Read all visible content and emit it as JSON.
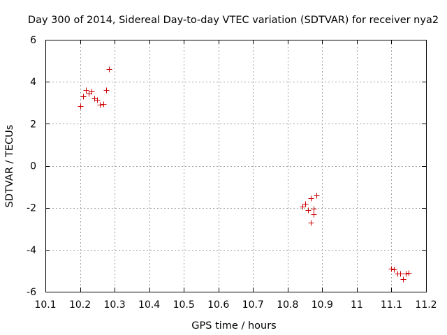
{
  "chart_data": {
    "type": "scatter",
    "title": "Day 300 of 2014, Sidereal Day-to-day VTEC variation (SDTVAR) for receiver nya2",
    "xlabel": "GPS time / hours",
    "ylabel": "SDTVAR / TECUs",
    "xlim": [
      10.1,
      11.2
    ],
    "ylim": [
      -6,
      6
    ],
    "xticks": [
      10.1,
      10.2,
      10.3,
      10.4,
      10.5,
      10.6,
      10.7,
      10.8,
      10.9,
      11,
      11.1,
      11.2
    ],
    "xtick_labels": [
      "10.1",
      "10.2",
      "10.3",
      "10.4",
      "10.5",
      "10.6",
      "10.7",
      "10.8",
      "10.9",
      "11",
      "11.1",
      "11.2"
    ],
    "yticks": [
      -6,
      -4,
      -2,
      0,
      2,
      4,
      6
    ],
    "ytick_labels": [
      "-6",
      "-4",
      "-2",
      "0",
      "2",
      "4",
      "6"
    ],
    "grid": true,
    "marker_color": "#cc0000",
    "series": [
      {
        "name": "SDTVAR",
        "marker": "+",
        "x": [
          10.2,
          10.208,
          10.217,
          10.225,
          10.233,
          10.242,
          10.25,
          10.258,
          10.267,
          10.275,
          10.283,
          10.842,
          10.85,
          10.858,
          10.867,
          10.867,
          10.875,
          10.875,
          10.883,
          11.1,
          11.108,
          11.117,
          11.125,
          11.133,
          11.142,
          11.15
        ],
        "y": [
          2.85,
          3.3,
          3.6,
          3.45,
          3.55,
          3.2,
          3.15,
          2.9,
          2.95,
          3.6,
          4.6,
          -1.95,
          -1.8,
          -2.1,
          -1.55,
          -2.7,
          -2.05,
          -2.3,
          -1.4,
          -4.9,
          -4.95,
          -5.15,
          -5.15,
          -5.4,
          -5.15,
          -5.1
        ]
      }
    ]
  }
}
